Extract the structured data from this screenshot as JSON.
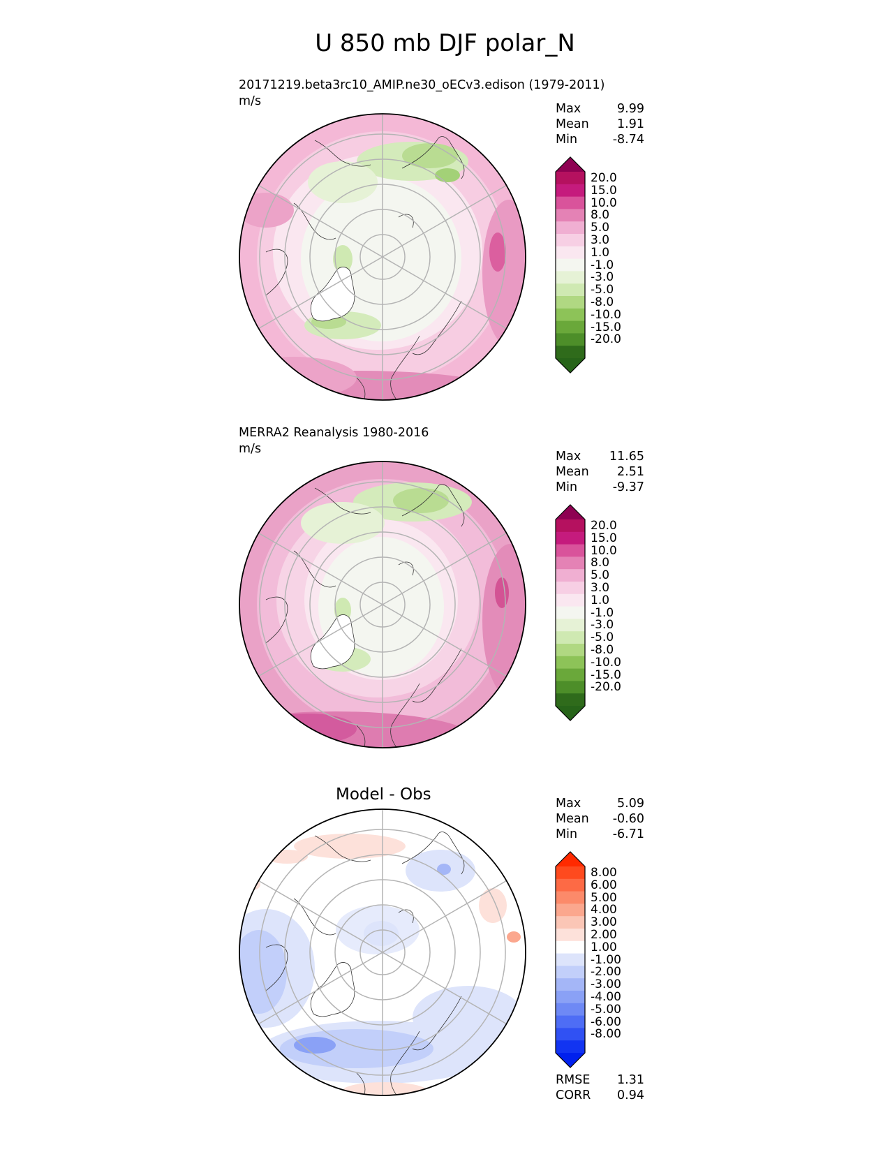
{
  "figure": {
    "title": "U 850 mb DJF polar_N"
  },
  "panels": [
    {
      "title": "20171219.beta3rc10_AMIP.ne30_oECv3.edison (1979-2011)",
      "units": "m/s",
      "stats": {
        "max_label": "Max",
        "max": "9.99",
        "mean_label": "Mean",
        "mean": "1.91",
        "min_label": "Min",
        "min": "-8.74"
      },
      "colorbar": {
        "labels": [
          "20.0",
          "15.0",
          "10.0",
          "8.0",
          "5.0",
          "3.0",
          "1.0",
          "-1.0",
          "-3.0",
          "-5.0",
          "-8.0",
          "-10.0",
          "-15.0",
          "-20.0"
        ],
        "colors": [
          "#8e0152",
          "#b5115f",
          "#c51b7d",
          "#d9539b",
          "#e482b5",
          "#f0afd2",
          "#f7cfe4",
          "#fae7f0",
          "#f4f6f0",
          "#e6f2d6",
          "#cfe9b2",
          "#b0d882",
          "#8dc358",
          "#6aa83a",
          "#4d8e29",
          "#2f6b1b",
          "#276419"
        ]
      }
    },
    {
      "title": "MERRA2 Reanalysis 1980-2016",
      "units": "m/s",
      "stats": {
        "max_label": "Max",
        "max": "11.65",
        "mean_label": "Mean",
        "mean": "2.51",
        "min_label": "Min",
        "min": "-9.37"
      },
      "colorbar": {
        "labels": [
          "20.0",
          "15.0",
          "10.0",
          "8.0",
          "5.0",
          "3.0",
          "1.0",
          "-1.0",
          "-3.0",
          "-5.0",
          "-8.0",
          "-10.0",
          "-15.0",
          "-20.0"
        ],
        "colors": [
          "#8e0152",
          "#b5115f",
          "#c51b7d",
          "#d9539b",
          "#e482b5",
          "#f0afd2",
          "#f7cfe4",
          "#fae7f0",
          "#f4f6f0",
          "#e6f2d6",
          "#cfe9b2",
          "#b0d882",
          "#8dc358",
          "#6aa83a",
          "#4d8e29",
          "#2f6b1b",
          "#276419"
        ]
      }
    },
    {
      "title": "Model - Obs",
      "stats": {
        "max_label": "Max",
        "max": "5.09",
        "mean_label": "Mean",
        "mean": "-0.60",
        "min_label": "Min",
        "min": "-6.71"
      },
      "colorbar": {
        "labels": [
          "8.00",
          "6.00",
          "5.00",
          "4.00",
          "3.00",
          "2.00",
          "1.00",
          "-1.00",
          "-2.00",
          "-3.00",
          "-4.00",
          "-5.00",
          "-6.00",
          "-8.00"
        ],
        "colors": [
          "#ff2a00",
          "#fe4a1e",
          "#fd6a45",
          "#fc8a6a",
          "#fba78e",
          "#fbc6b6",
          "#fde1da",
          "#ffffff",
          "#dde4fb",
          "#c2cffa",
          "#a4b6f7",
          "#8aa1f6",
          "#6e89f5",
          "#4e6df5",
          "#3051f3",
          "#1234f2",
          "#0020ee"
        ]
      },
      "metrics": {
        "rmse_label": "RMSE",
        "rmse": "1.31",
        "corr_label": "CORR",
        "corr": "0.94"
      }
    }
  ],
  "chart_data": {
    "type": "heatmap",
    "projection": "north polar stereographic",
    "title": "U 850 mb DJF polar_N",
    "maps": [
      {
        "title": "20171219.beta3rc10_AMIP.ne30_oECv3.edison (1979-2011)",
        "units": "m/s",
        "max": 9.99,
        "mean": 1.91,
        "min": -8.74,
        "levels": [
          -20,
          -15,
          -10,
          -8,
          -5,
          -3,
          -1,
          1,
          3,
          5,
          8,
          10,
          15,
          20
        ],
        "colormap": "PiYG (green negative, pink positive)"
      },
      {
        "title": "MERRA2 Reanalysis 1980-2016",
        "units": "m/s",
        "max": 11.65,
        "mean": 2.51,
        "min": -9.37,
        "levels": [
          -20,
          -15,
          -10,
          -8,
          -5,
          -3,
          -1,
          1,
          3,
          5,
          8,
          10,
          15,
          20
        ],
        "colormap": "PiYG (green negative, pink positive)"
      },
      {
        "title": "Model - Obs",
        "max": 5.09,
        "mean": -0.6,
        "min": -6.71,
        "rmse": 1.31,
        "corr": 0.94,
        "levels": [
          -8,
          -6,
          -5,
          -4,
          -3,
          -2,
          -1,
          1,
          2,
          3,
          4,
          5,
          6,
          8
        ],
        "colormap": "blue-white-red (blue negative, red positive)"
      }
    ]
  }
}
